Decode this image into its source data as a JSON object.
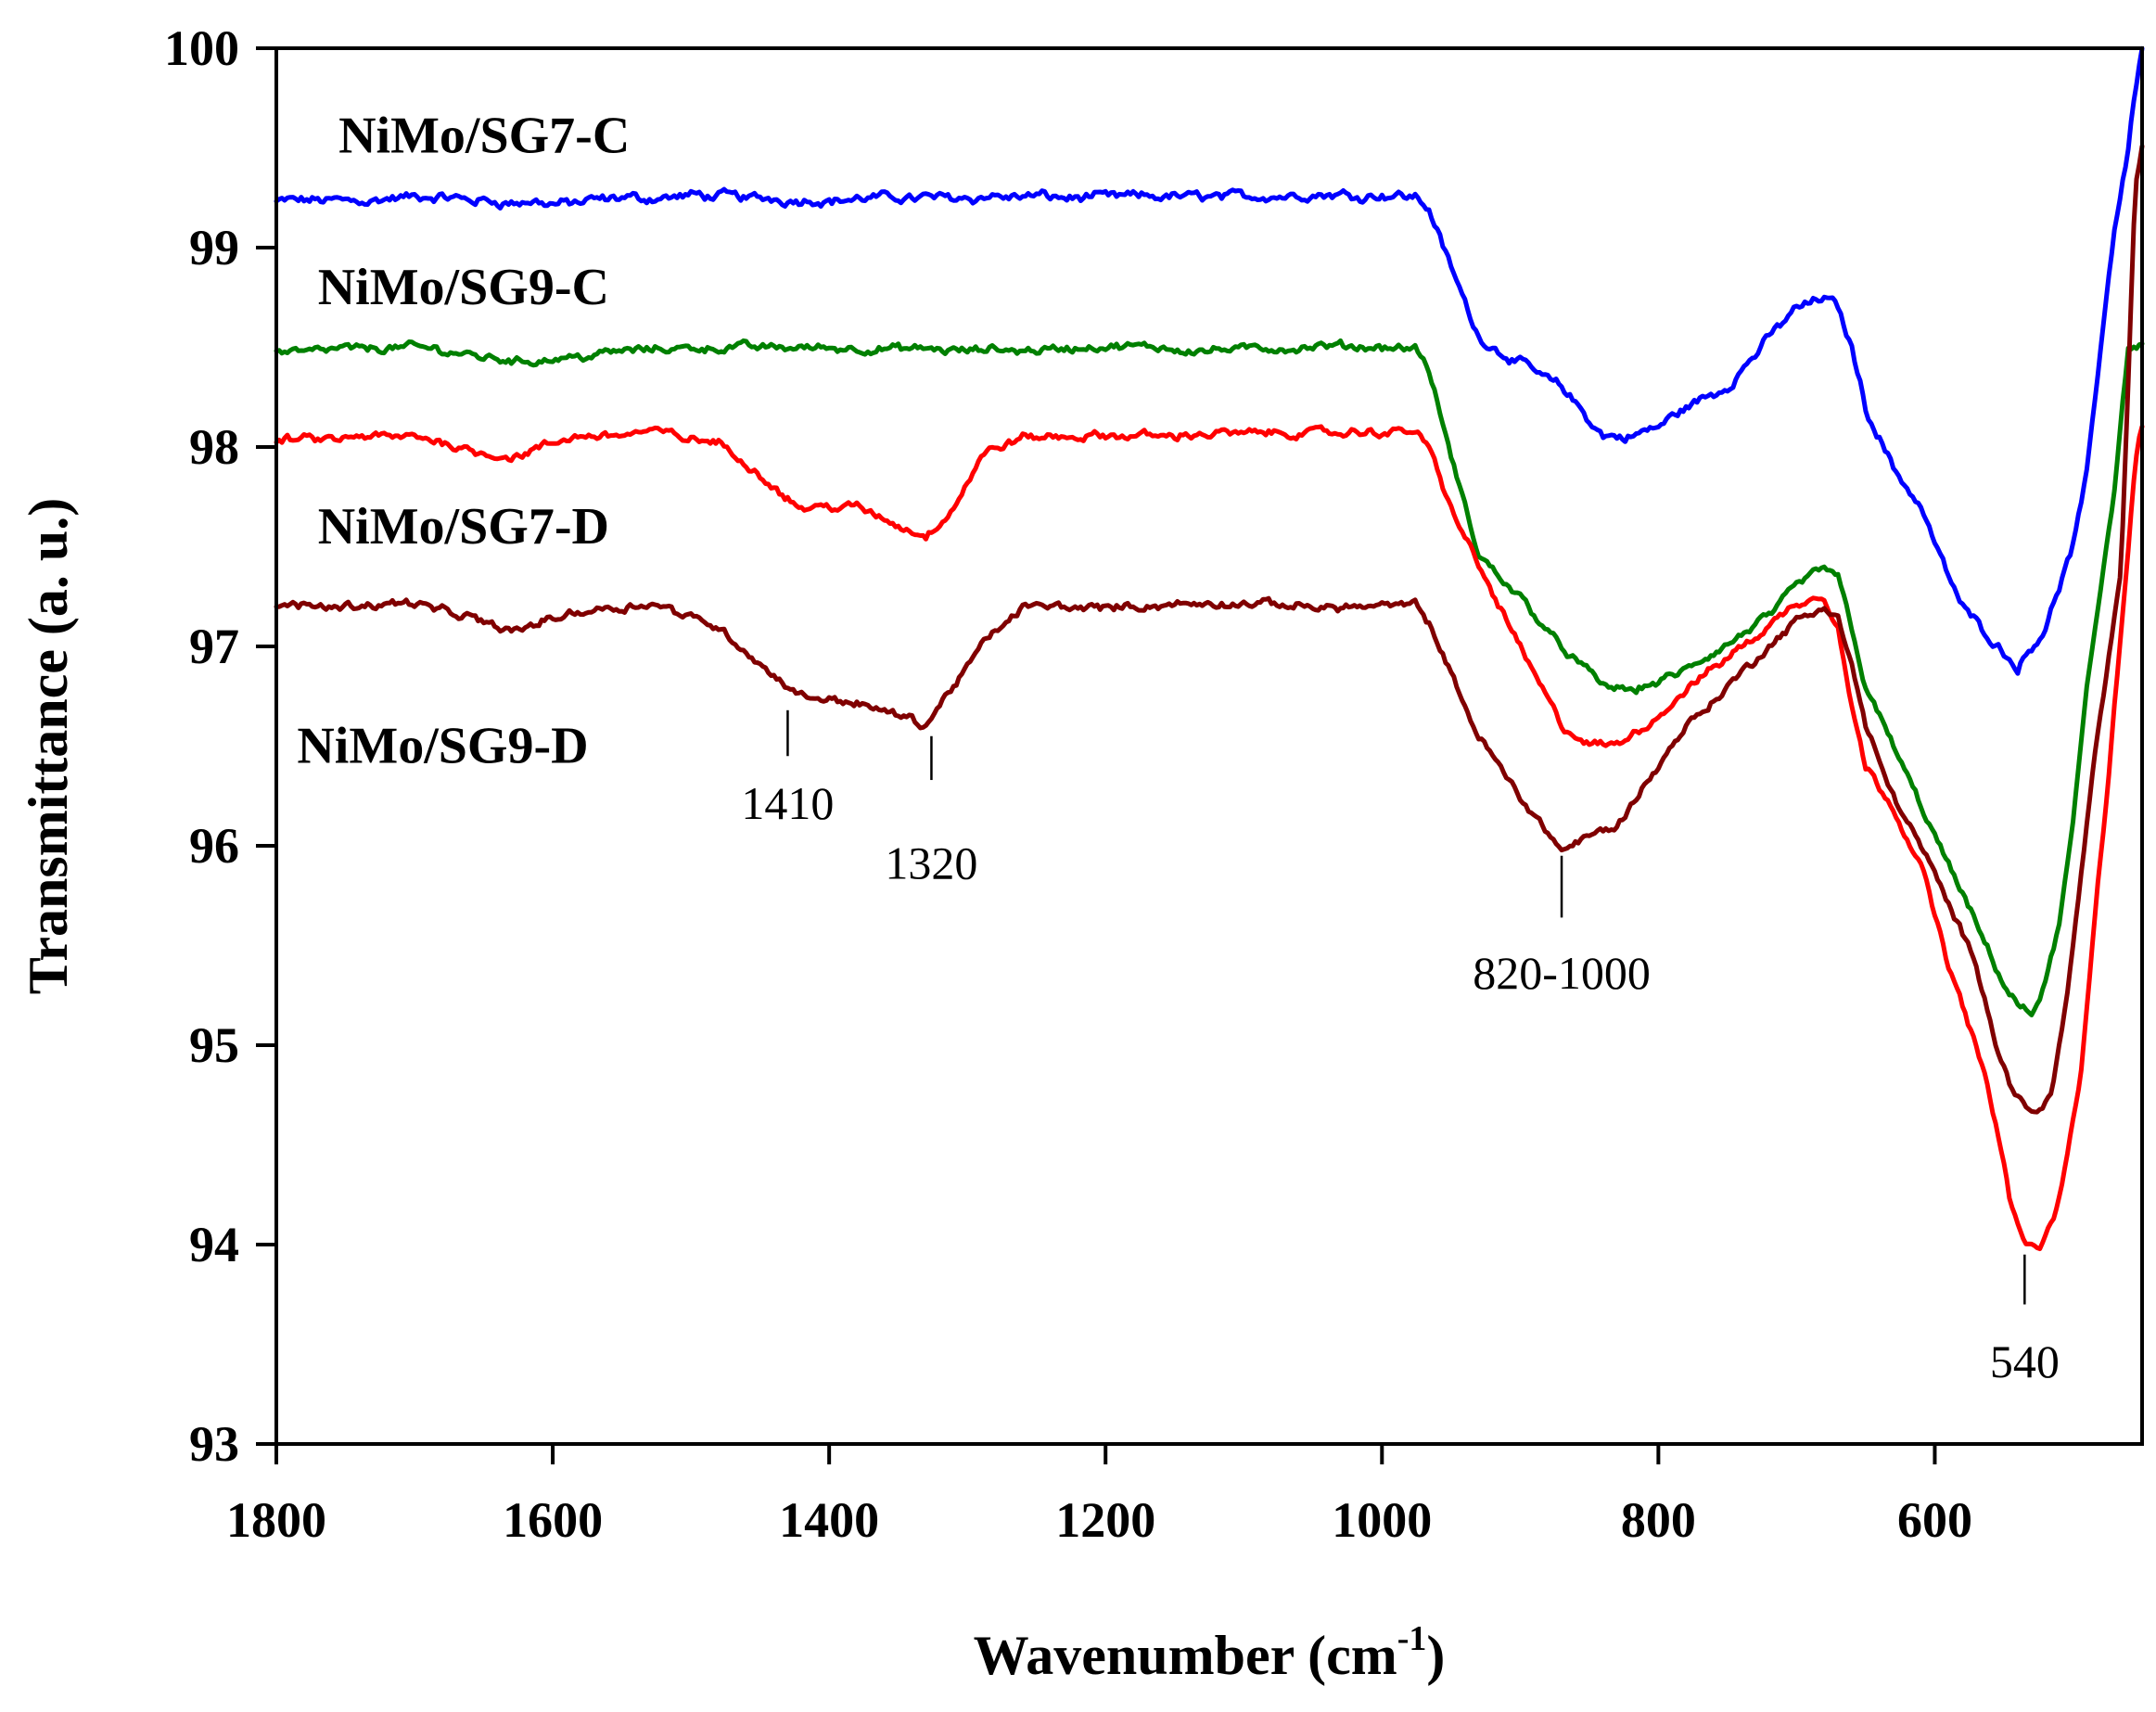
{
  "chart_data": {
    "type": "line",
    "xlabel": "Wavenumber (cm",
    "xlabel_sup": "-1",
    "xlabel_close": ")",
    "ylabel": "Transmittance (a. u.)",
    "xlim": [
      1800,
      450
    ],
    "ylim": [
      93,
      100
    ],
    "x_ticks": [
      1800,
      1600,
      1400,
      1200,
      1000,
      800,
      600
    ],
    "y_ticks": [
      93,
      94,
      95,
      96,
      97,
      98,
      99,
      100
    ],
    "grid": false,
    "legend": "inline labels at left",
    "series": [
      {
        "name": "NiMo/SG7-C",
        "color": "#0000ff",
        "noise": 0.035,
        "x": [
          1800,
          1700,
          1600,
          1500,
          1400,
          1300,
          1200,
          1100,
          1000,
          975,
          965,
          950,
          930,
          900,
          870,
          840,
          820,
          800,
          780,
          750,
          720,
          700,
          680,
          670,
          660,
          650,
          630,
          610,
          590,
          580,
          560,
          540,
          530,
          520,
          510,
          500,
          490,
          480,
          470,
          460,
          455,
          450
        ],
        "y": [
          99.23,
          99.25,
          99.22,
          99.26,
          99.24,
          99.26,
          99.25,
          99.26,
          99.27,
          99.26,
          99.18,
          98.9,
          98.55,
          98.42,
          98.3,
          98.05,
          98.05,
          98.1,
          98.2,
          98.3,
          98.55,
          98.7,
          98.75,
          98.7,
          98.5,
          98.2,
          97.9,
          97.7,
          97.35,
          97.2,
          97.05,
          96.9,
          97.0,
          97.1,
          97.3,
          97.5,
          97.85,
          98.5,
          99.1,
          99.5,
          99.8,
          100.0
        ]
      },
      {
        "name": "NiMo/SG9-C",
        "color": "#008000",
        "noise": 0.03,
        "x": [
          1800,
          1700,
          1620,
          1550,
          1500,
          1400,
          1300,
          1200,
          1100,
          1000,
          975,
          965,
          950,
          930,
          900,
          870,
          840,
          820,
          800,
          780,
          750,
          720,
          700,
          680,
          670,
          660,
          650,
          630,
          610,
          590,
          570,
          550,
          540,
          530,
          520,
          510,
          500,
          490,
          480,
          470,
          460,
          450
        ],
        "y": [
          98.48,
          98.5,
          98.43,
          98.48,
          98.5,
          98.5,
          98.48,
          98.5,
          98.49,
          98.5,
          98.5,
          98.35,
          97.95,
          97.45,
          97.25,
          97.0,
          96.8,
          96.78,
          96.82,
          96.88,
          97.0,
          97.15,
          97.3,
          97.4,
          97.35,
          97.1,
          96.8,
          96.5,
          96.2,
          95.9,
          95.6,
          95.3,
          95.2,
          95.15,
          95.3,
          95.6,
          96.1,
          96.8,
          97.3,
          97.8,
          98.5,
          98.5
        ]
      },
      {
        "name": "NiMo/SG7-D",
        "color": "#ff0000",
        "noise": 0.03,
        "x": [
          1800,
          1700,
          1630,
          1580,
          1530,
          1480,
          1440,
          1420,
          1380,
          1350,
          1330,
          1310,
          1290,
          1260,
          1200,
          1100,
          1000,
          975,
          965,
          950,
          930,
          900,
          870,
          850,
          830,
          800,
          780,
          750,
          720,
          700,
          680,
          670,
          660,
          650,
          630,
          610,
          590,
          570,
          555,
          545,
          535,
          525,
          515,
          505,
          495,
          485,
          475,
          465,
          455,
          450
        ],
        "y": [
          98.03,
          98.05,
          97.95,
          98.05,
          98.08,
          98.02,
          97.8,
          97.7,
          97.7,
          97.6,
          97.55,
          97.7,
          97.95,
          98.05,
          98.05,
          98.07,
          98.07,
          98.08,
          97.98,
          97.7,
          97.4,
          97.0,
          96.6,
          96.5,
          96.5,
          96.65,
          96.78,
          96.95,
          97.1,
          97.22,
          97.25,
          97.1,
          96.7,
          96.4,
          96.2,
          95.9,
          95.4,
          95.0,
          94.6,
          94.2,
          94.0,
          93.98,
          94.1,
          94.4,
          94.8,
          95.6,
          96.3,
          97.1,
          97.9,
          98.1
        ]
      },
      {
        "name": "NiMo/SG9-D",
        "color": "#800000",
        "noise": 0.03,
        "x": [
          1800,
          1700,
          1630,
          1580,
          1530,
          1480,
          1440,
          1420,
          1380,
          1350,
          1330,
          1310,
          1290,
          1260,
          1200,
          1100,
          1000,
          975,
          965,
          950,
          930,
          900,
          870,
          850,
          830,
          800,
          780,
          750,
          720,
          700,
          680,
          670,
          660,
          650,
          630,
          610,
          590,
          570,
          555,
          545,
          535,
          525,
          515,
          505,
          495,
          485,
          475,
          465,
          455,
          450
        ],
        "y": [
          97.2,
          97.22,
          97.08,
          97.18,
          97.22,
          97.1,
          96.85,
          96.75,
          96.72,
          96.65,
          96.6,
          96.8,
          97.0,
          97.2,
          97.2,
          97.21,
          97.2,
          97.2,
          97.1,
          96.85,
          96.55,
          96.25,
          95.98,
          96.05,
          96.1,
          96.4,
          96.6,
          96.8,
          97.0,
          97.12,
          97.2,
          97.15,
          96.9,
          96.6,
          96.25,
          96.0,
          95.7,
          95.4,
          95.0,
          94.8,
          94.7,
          94.65,
          94.8,
          95.2,
          95.8,
          96.4,
          96.9,
          97.4,
          99.3,
          99.5
        ]
      }
    ],
    "inline_labels": [
      {
        "text": "NiMo/SG7-C",
        "series": "NiMo/SG7-C",
        "x": 1755,
        "y": 99.56
      },
      {
        "text": "NiMo/SG9-C",
        "series": "NiMo/SG9-C",
        "x": 1770,
        "y": 98.8
      },
      {
        "text": "NiMo/SG7-D",
        "series": "NiMo/SG7-D",
        "x": 1770,
        "y": 97.6
      },
      {
        "text": "NiMo/SG9-D",
        "series": "NiMo/SG9-D",
        "x": 1785,
        "y": 96.5
      }
    ],
    "annotations": [
      {
        "text": "1410",
        "x": 1430,
        "tick_from": 96.68,
        "tick_to": 96.45,
        "label_y": 96.2
      },
      {
        "text": "1320",
        "x": 1326,
        "tick_from": 96.55,
        "tick_to": 96.33,
        "label_y": 95.9
      },
      {
        "text": "820-1000",
        "x": 870,
        "tick_from": 95.95,
        "tick_to": 95.64,
        "label_y": 95.35
      },
      {
        "text": "540",
        "x": 535,
        "tick_from": 93.95,
        "tick_to": 93.7,
        "label_y": 93.4
      }
    ]
  }
}
